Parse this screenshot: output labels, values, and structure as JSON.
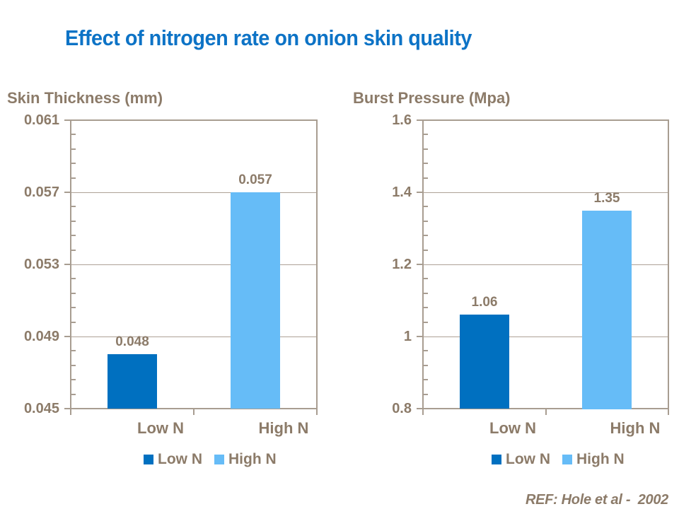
{
  "title": {
    "text": "Effect of nitrogen rate on onion skin quality"
  },
  "reference": "REF: Hole et al -  2002",
  "palette": {
    "title_blue": "#0D73C6",
    "dark_blue": "#0070C0",
    "light_blue": "#66BCF7",
    "text_brown": "#8C7B69",
    "axis_color": "#A89D91",
    "gridline_color": "#ADA196"
  },
  "chart_data": [
    {
      "type": "bar",
      "title": "Skin Thickness (mm)",
      "categories": [
        "Low N",
        "High N"
      ],
      "values": [
        0.048,
        0.057
      ],
      "value_labels": [
        "0.048",
        "0.057"
      ],
      "bar_colors": [
        "#0070C0",
        "#66BCF7"
      ],
      "ylim": [
        0.045,
        0.061
      ],
      "yticks": [
        0.061,
        0.057,
        0.053,
        0.049,
        0.045
      ],
      "ytick_labels": [
        "0.061",
        "0.057",
        "0.053",
        "0.049",
        "0.045"
      ],
      "minor_ticks_per_interval": 4,
      "grid": true,
      "legend_position": "bottom",
      "legend": [
        {
          "label": "Low N",
          "color": "#0070C0"
        },
        {
          "label": "High N",
          "color": "#66BCF7"
        }
      ]
    },
    {
      "type": "bar",
      "title": "Burst Pressure (Mpa)",
      "categories": [
        "Low N",
        "High N"
      ],
      "values": [
        1.06,
        1.35
      ],
      "value_labels": [
        "1.06",
        "1.35"
      ],
      "bar_colors": [
        "#0070C0",
        "#66BCF7"
      ],
      "ylim": [
        0.8,
        1.6
      ],
      "yticks": [
        1.6,
        1.4,
        1.2,
        1.0,
        0.8
      ],
      "ytick_labels": [
        "1.6",
        "1.4",
        "1.2",
        "1",
        "0.8"
      ],
      "minor_ticks_per_interval": 4,
      "grid": true,
      "legend_position": "bottom",
      "legend": [
        {
          "label": "Low N",
          "color": "#0070C0"
        },
        {
          "label": "High N",
          "color": "#66BCF7"
        }
      ]
    }
  ]
}
